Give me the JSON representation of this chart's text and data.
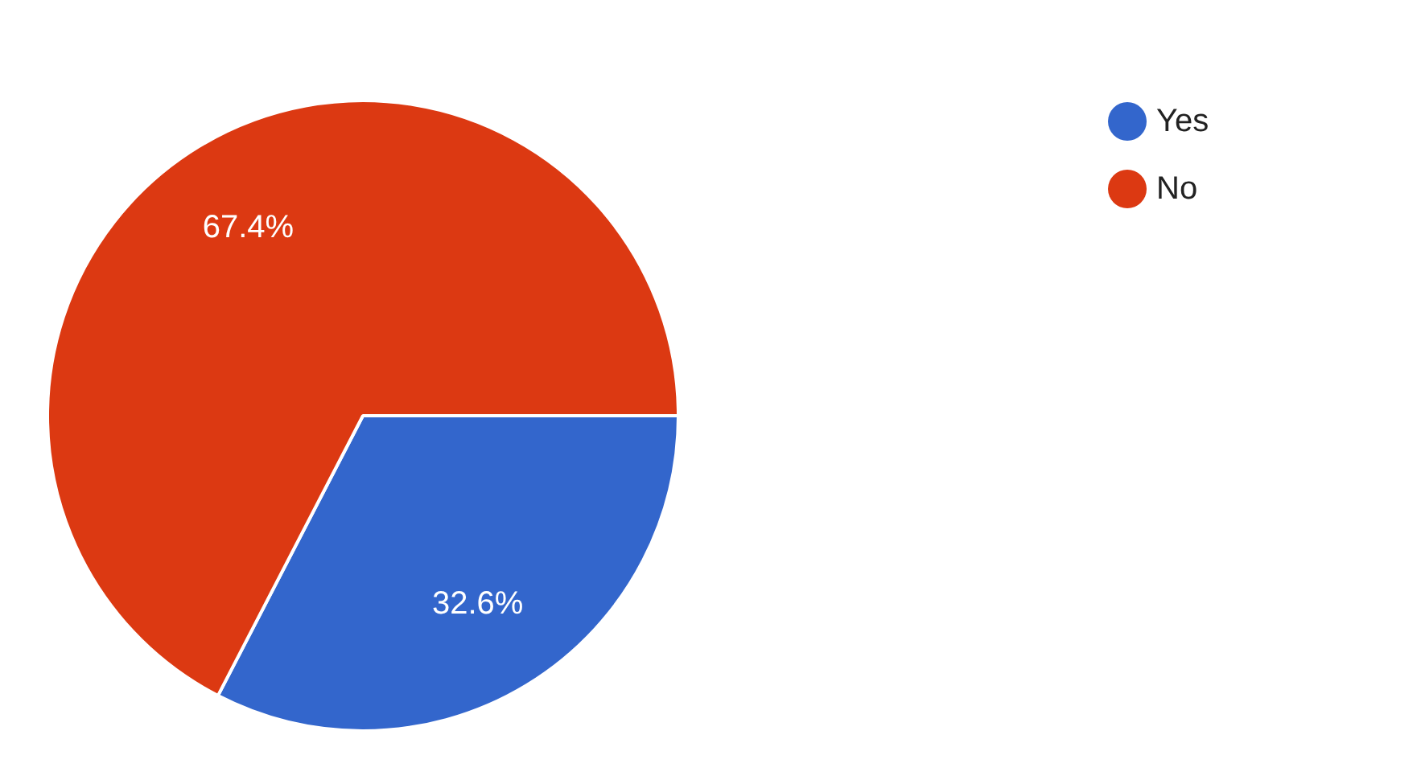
{
  "chart_data": {
    "type": "pie",
    "categories": [
      "Yes",
      "No"
    ],
    "values": [
      32.6,
      67.4
    ],
    "colors": [
      "#3366cc",
      "#dc3912"
    ],
    "value_labels": [
      "32.6%",
      "67.4%"
    ],
    "legend": "top right"
  }
}
